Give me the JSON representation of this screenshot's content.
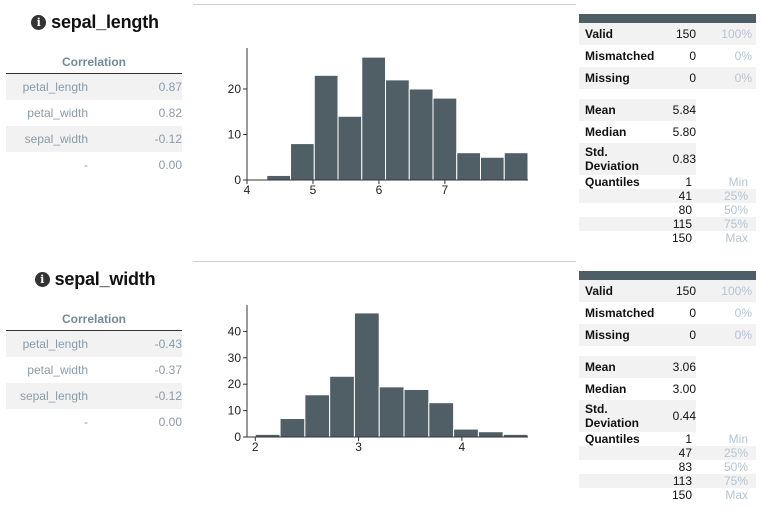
{
  "sections": [
    {
      "title": "sepal_length",
      "info_icon": "info-icon",
      "correlation": {
        "header": "Correlation",
        "rows": [
          {
            "name": "petal_length",
            "value": "0.87"
          },
          {
            "name": "petal_width",
            "value": "0.82"
          },
          {
            "name": "sepal_width",
            "value": "-0.12"
          },
          {
            "name": "-",
            "value": "0.00"
          }
        ]
      },
      "stats": {
        "valid": {
          "label": "Valid",
          "count": "150",
          "pct": "100%"
        },
        "mismatched": {
          "label": "Mismatched",
          "count": "0",
          "pct": "0%"
        },
        "missing": {
          "label": "Missing",
          "count": "0",
          "pct": "0%"
        },
        "mean": {
          "label": "Mean",
          "value": "5.84"
        },
        "median": {
          "label": "Median",
          "value": "5.80"
        },
        "std": {
          "label1": "Std.",
          "label2": "Deviation",
          "value": "0.83"
        },
        "quantiles_label": "Quantiles",
        "quantiles": [
          {
            "value": "1",
            "label": "Min"
          },
          {
            "value": "41",
            "label": "25%"
          },
          {
            "value": "80",
            "label": "50%"
          },
          {
            "value": "115",
            "label": "75%"
          },
          {
            "value": "150",
            "label": "Max"
          }
        ]
      }
    },
    {
      "title": "sepal_width",
      "info_icon": "info-icon",
      "correlation": {
        "header": "Correlation",
        "rows": [
          {
            "name": "petal_length",
            "value": "-0.43"
          },
          {
            "name": "petal_width",
            "value": "-0.37"
          },
          {
            "name": "sepal_length",
            "value": "-0.12"
          },
          {
            "name": "-",
            "value": "0.00"
          }
        ]
      },
      "stats": {
        "valid": {
          "label": "Valid",
          "count": "150",
          "pct": "100%"
        },
        "mismatched": {
          "label": "Mismatched",
          "count": "0",
          "pct": "0%"
        },
        "missing": {
          "label": "Missing",
          "count": "0",
          "pct": "0%"
        },
        "mean": {
          "label": "Mean",
          "value": "3.06"
        },
        "median": {
          "label": "Median",
          "value": "3.00"
        },
        "std": {
          "label1": "Std.",
          "label2": "Deviation",
          "value": "0.44"
        },
        "quantiles_label": "Quantiles",
        "quantiles": [
          {
            "value": "1",
            "label": "Min"
          },
          {
            "value": "47",
            "label": "25%"
          },
          {
            "value": "83",
            "label": "50%"
          },
          {
            "value": "113",
            "label": "75%"
          },
          {
            "value": "150",
            "label": "Max"
          }
        ]
      }
    }
  ],
  "chart_data": [
    {
      "type": "bar",
      "bar_color": "#505f66",
      "bins": [
        {
          "x0": 4.3,
          "x1": 4.66,
          "count": 1
        },
        {
          "x0": 4.66,
          "x1": 5.02,
          "count": 8
        },
        {
          "x0": 5.02,
          "x1": 5.38,
          "count": 23
        },
        {
          "x0": 5.38,
          "x1": 5.74,
          "count": 14
        },
        {
          "x0": 5.74,
          "x1": 6.1,
          "count": 27
        },
        {
          "x0": 6.1,
          "x1": 6.46,
          "count": 22
        },
        {
          "x0": 6.46,
          "x1": 6.82,
          "count": 20
        },
        {
          "x0": 6.82,
          "x1": 7.18,
          "count": 18
        },
        {
          "x0": 7.18,
          "x1": 7.54,
          "count": 6
        },
        {
          "x0": 7.54,
          "x1": 7.9,
          "count": 5
        },
        {
          "x0": 7.9,
          "x1": 8.26,
          "count": 6
        }
      ],
      "xlim": [
        4,
        8.26
      ],
      "ylim": [
        0,
        29
      ],
      "xticks": [
        "4",
        "5",
        "6",
        "7"
      ],
      "xtick_values": [
        4,
        5,
        6,
        7
      ],
      "yticks": [
        "0",
        "10",
        "20"
      ],
      "ytick_values": [
        0,
        10,
        20
      ]
    },
    {
      "type": "bar",
      "bar_color": "#505f66",
      "bins": [
        {
          "x0": 2.0,
          "x1": 2.24,
          "count": 1
        },
        {
          "x0": 2.24,
          "x1": 2.48,
          "count": 7
        },
        {
          "x0": 2.48,
          "x1": 2.72,
          "count": 16
        },
        {
          "x0": 2.72,
          "x1": 2.96,
          "count": 23
        },
        {
          "x0": 2.96,
          "x1": 3.2,
          "count": 47
        },
        {
          "x0": 3.2,
          "x1": 3.44,
          "count": 19
        },
        {
          "x0": 3.44,
          "x1": 3.68,
          "count": 18
        },
        {
          "x0": 3.68,
          "x1": 3.92,
          "count": 13
        },
        {
          "x0": 3.92,
          "x1": 4.16,
          "count": 3
        },
        {
          "x0": 4.16,
          "x1": 4.4,
          "count": 2
        },
        {
          "x0": 4.4,
          "x1": 4.64,
          "count": 1
        }
      ],
      "xlim": [
        1.92,
        4.64
      ],
      "ylim": [
        0,
        50
      ],
      "xticks": [
        "2",
        "3",
        "4"
      ],
      "xtick_values": [
        2,
        3,
        4
      ],
      "yticks": [
        "0",
        "10",
        "20",
        "30",
        "40"
      ],
      "ytick_values": [
        0,
        10,
        20,
        30,
        40
      ]
    }
  ]
}
